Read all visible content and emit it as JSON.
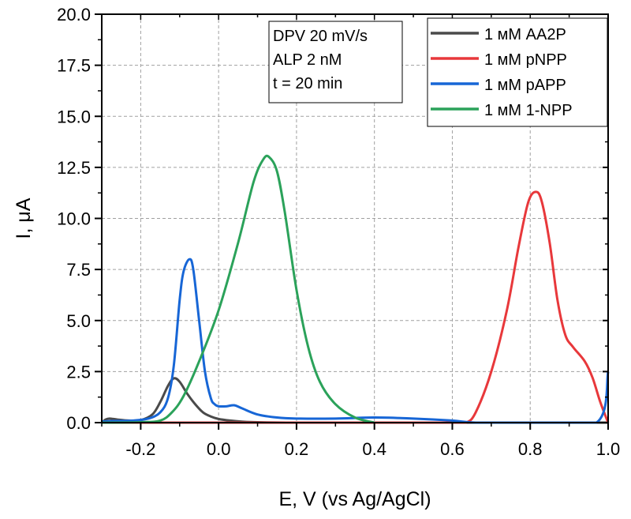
{
  "chart_data": {
    "type": "line",
    "title": "",
    "xlabel": "E, V (vs Ag/AgCl)",
    "ylabel": "I, μA",
    "xlim": [
      -0.3,
      1.0
    ],
    "ylim": [
      0,
      20
    ],
    "x_ticks": [
      -0.2,
      0.0,
      0.2,
      0.4,
      0.6,
      0.8,
      1.0
    ],
    "x_tick_labels": [
      "-0.2",
      "0.0",
      "0.2",
      "0.4",
      "0.6",
      "0.8",
      "1.0"
    ],
    "y_ticks": [
      0,
      2.5,
      5,
      7.5,
      10,
      12.5,
      15,
      17.5,
      20
    ],
    "y_tick_labels": [
      "0.0",
      "2.5",
      "5.0",
      "7.5",
      "10.0",
      "12.5",
      "15.0",
      "17.5",
      "20.0"
    ],
    "grid": true,
    "legend_position": "top-right",
    "annotation": {
      "position": "top-center",
      "lines": [
        "DPV 20 mV/s",
        "ALP 2 nM",
        "t = 20 min"
      ]
    },
    "series": [
      {
        "name": "1 мМ AA2P",
        "color": "#4a4a4a",
        "x": [
          -0.3,
          -0.29,
          -0.28,
          -0.26,
          -0.23,
          -0.2,
          -0.17,
          -0.15,
          -0.13,
          -0.115,
          -0.1,
          -0.08,
          -0.06,
          -0.04,
          -0.02,
          0.0,
          0.03,
          0.06,
          0.1,
          0.2,
          0.4,
          0.6,
          0.8,
          1.0
        ],
        "y": [
          0.0,
          0.15,
          0.2,
          0.15,
          0.1,
          0.12,
          0.4,
          1.0,
          1.8,
          2.17,
          2.0,
          1.4,
          0.9,
          0.5,
          0.3,
          0.18,
          0.1,
          0.05,
          0.02,
          0.0,
          0.0,
          0.0,
          0.0,
          0.0
        ]
      },
      {
        "name": "1 мМ pNPP",
        "color": "#e8383b",
        "x": [
          -0.3,
          0.0,
          0.3,
          0.6,
          0.635,
          0.66,
          0.7,
          0.74,
          0.77,
          0.795,
          0.815,
          0.83,
          0.85,
          0.87,
          0.89,
          0.91,
          0.94,
          0.96,
          0.98,
          1.0
        ],
        "y": [
          0.0,
          0.0,
          0.0,
          0.0,
          0.0,
          0.5,
          2.5,
          5.5,
          8.6,
          10.8,
          11.3,
          10.8,
          8.8,
          6.0,
          4.3,
          3.7,
          3.0,
          2.2,
          1.0,
          0.0
        ]
      },
      {
        "name": "1 мМ pAPP",
        "color": "#1766d6",
        "x": [
          -0.3,
          -0.27,
          -0.22,
          -0.18,
          -0.15,
          -0.13,
          -0.115,
          -0.1,
          -0.09,
          -0.075,
          -0.065,
          -0.05,
          -0.035,
          -0.02,
          -0.01,
          0.0,
          0.02,
          0.04,
          0.06,
          0.1,
          0.15,
          0.2,
          0.3,
          0.4,
          0.5,
          0.6,
          0.66,
          0.8,
          0.97,
          1.0
        ],
        "y": [
          0.05,
          0.08,
          0.1,
          0.2,
          0.5,
          1.2,
          2.8,
          6.0,
          7.4,
          8.0,
          7.5,
          5.0,
          2.5,
          1.2,
          0.9,
          0.8,
          0.8,
          0.85,
          0.7,
          0.4,
          0.25,
          0.2,
          0.2,
          0.25,
          0.2,
          0.1,
          0.0,
          0.0,
          0.0,
          2.5
        ]
      },
      {
        "name": "1 мМ 1-NPP",
        "color": "#2ba25a",
        "x": [
          -0.3,
          -0.2,
          -0.15,
          -0.12,
          -0.09,
          -0.05,
          0.0,
          0.05,
          0.09,
          0.115,
          0.13,
          0.15,
          0.17,
          0.2,
          0.23,
          0.26,
          0.3,
          0.35,
          0.4
        ],
        "y": [
          0.0,
          0.02,
          0.1,
          0.5,
          1.3,
          3.0,
          5.5,
          8.8,
          11.8,
          12.9,
          13.0,
          12.3,
          10.3,
          6.5,
          3.7,
          2.0,
          0.9,
          0.25,
          0.0
        ]
      }
    ]
  }
}
